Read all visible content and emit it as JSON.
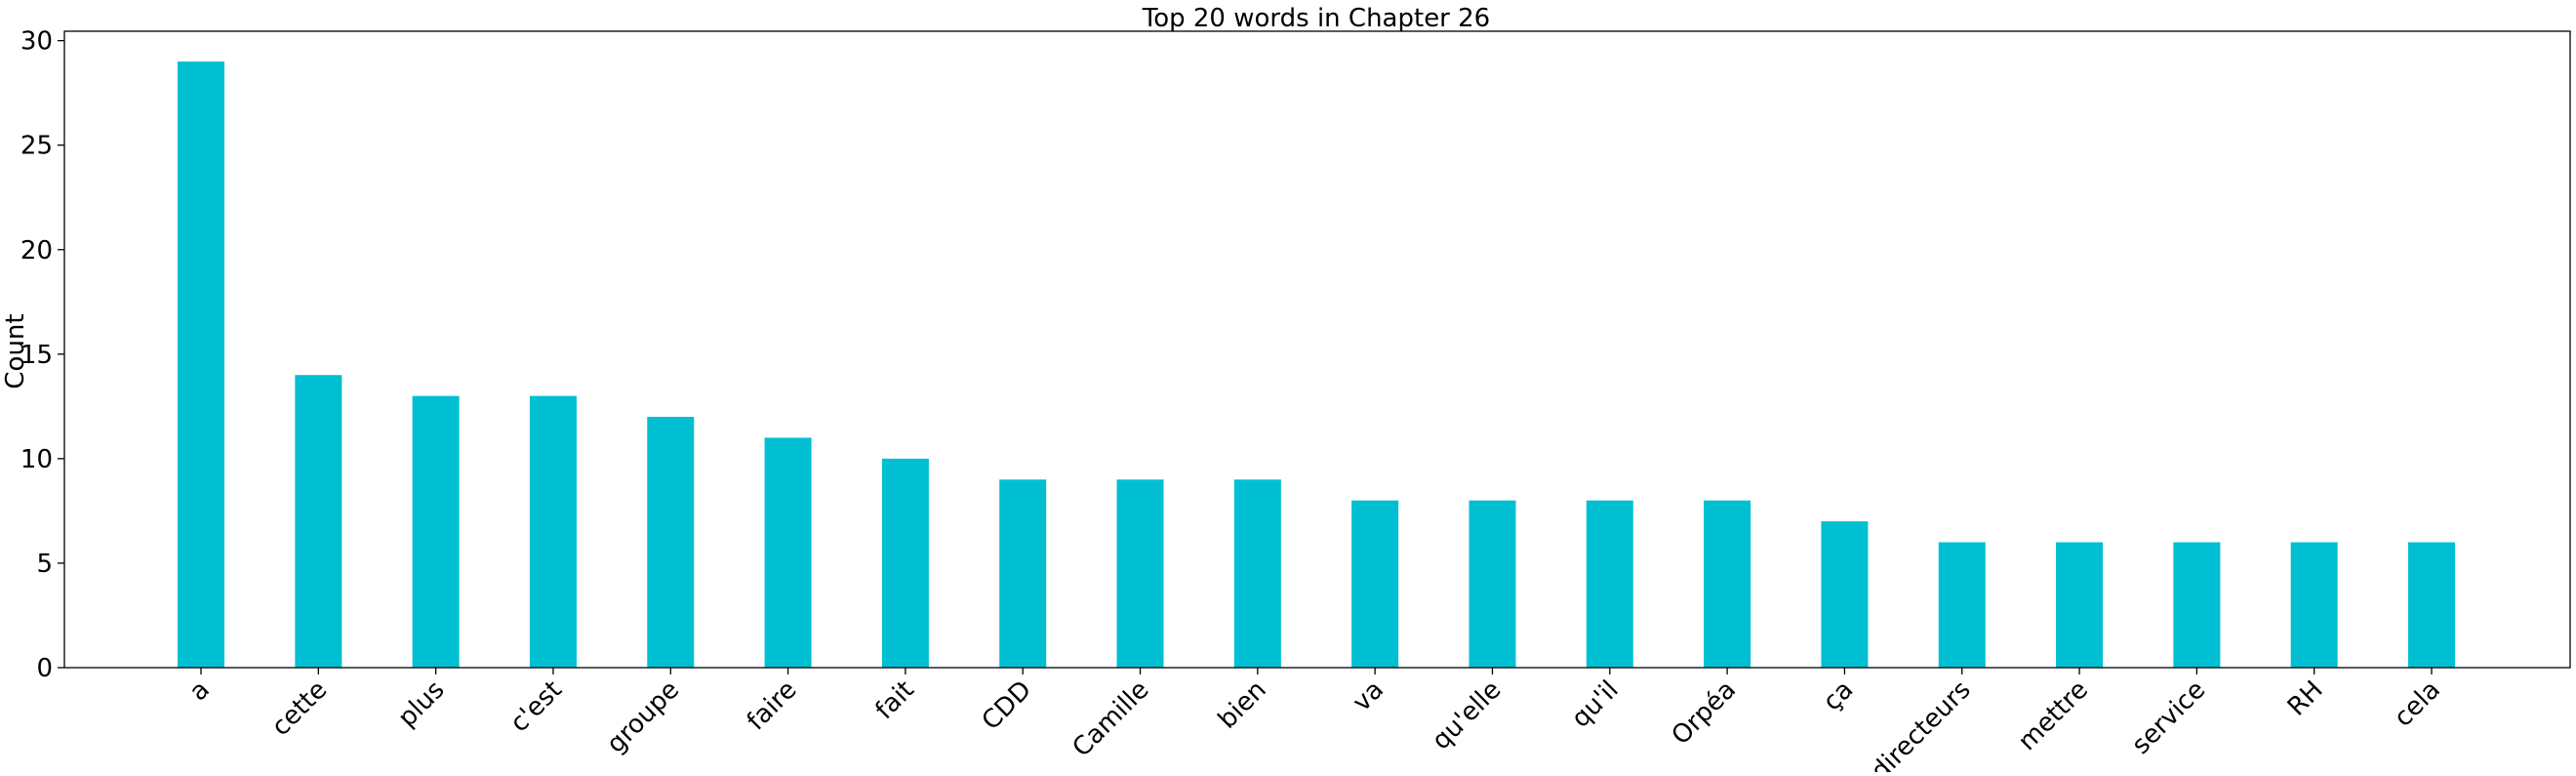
{
  "chart_data": {
    "type": "bar",
    "title": "Top 20 words in Chapter 26",
    "xlabel": "",
    "ylabel": "Count",
    "categories": [
      "a",
      "cette",
      "plus",
      "c'est",
      "groupe",
      "faire",
      "fait",
      "CDD",
      "Camille",
      "bien",
      "va",
      "qu'elle",
      "qu'il",
      "Orpéa",
      "ça",
      "directeurs",
      "mettre",
      "service",
      "RH",
      "cela"
    ],
    "values": [
      29,
      14,
      13,
      13,
      12,
      11,
      10,
      9,
      9,
      9,
      8,
      8,
      8,
      8,
      7,
      6,
      6,
      6,
      6,
      6
    ],
    "ylim": [
      0,
      30.45
    ],
    "yticks": [
      "0",
      "5",
      "10",
      "15",
      "20",
      "25",
      "30"
    ],
    "grid": false,
    "legend": "none",
    "colors": {
      "bar": "#00BFD2",
      "axis": "#000000",
      "background": "#ffffff"
    }
  }
}
